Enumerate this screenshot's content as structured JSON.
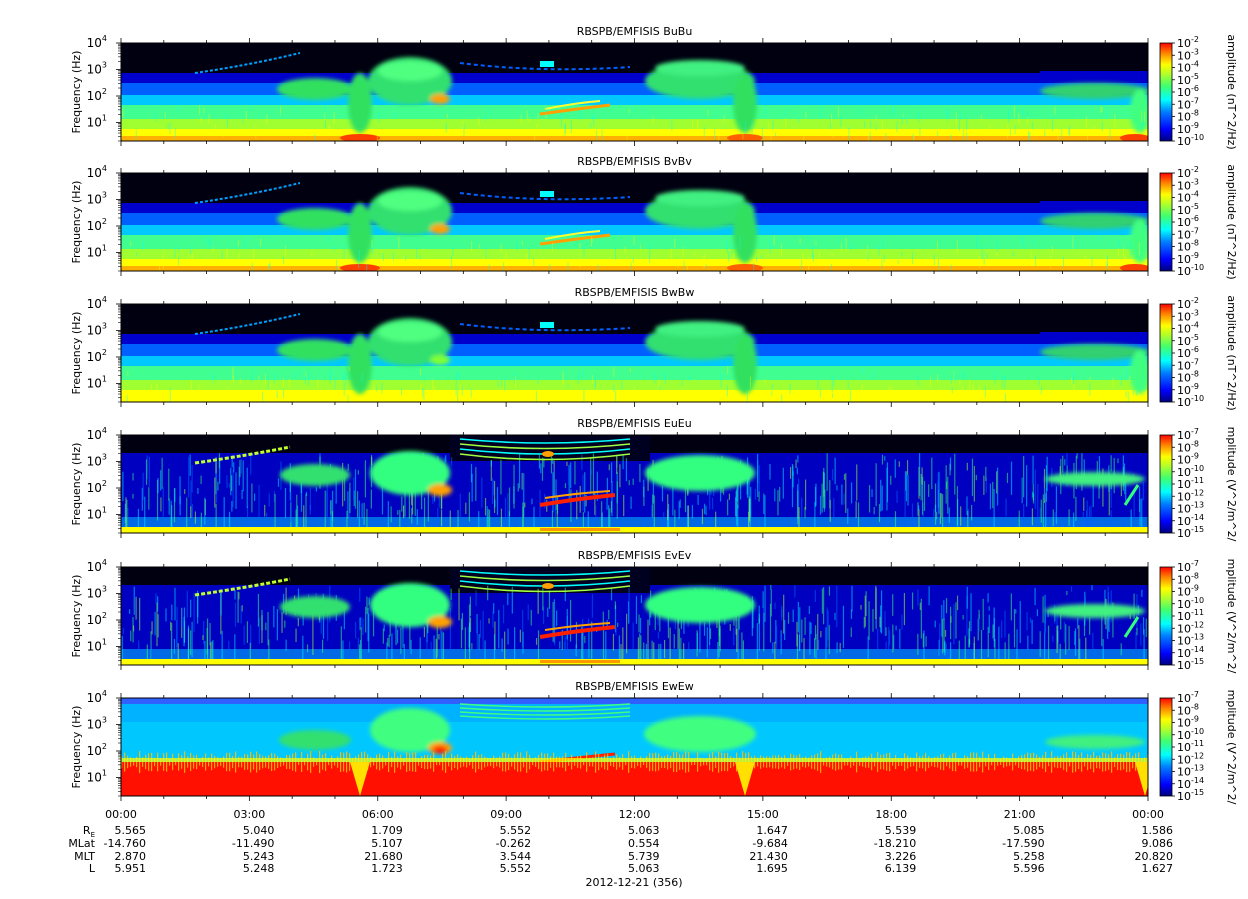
{
  "chart_data": {
    "type": "heatmap",
    "date_label": "2012-12-21 (356)",
    "x_tick_labels": [
      "00:00",
      "03:00",
      "06:00",
      "09:00",
      "12:00",
      "15:00",
      "18:00",
      "21:00",
      "00:00"
    ],
    "x_hours": [
      0,
      24
    ],
    "ephemeris": {
      "labels": [
        "R",
        "MLat",
        "MLT",
        "L"
      ],
      "re_subscript": "E",
      "rows": [
        [
          "5.565",
          "5.040",
          "1.709",
          "5.552",
          "5.063",
          "1.647",
          "5.539",
          "5.085",
          "1.586"
        ],
        [
          "-14.760",
          "-11.490",
          "5.107",
          "-0.262",
          "0.554",
          "-9.684",
          "-18.210",
          "-17.590",
          "9.086"
        ],
        [
          "2.870",
          "5.243",
          "21.680",
          "3.544",
          "5.739",
          "21.430",
          "3.226",
          "5.258",
          "20.820"
        ],
        [
          "5.951",
          "5.248",
          "1.723",
          "5.552",
          "5.063",
          "1.695",
          "6.139",
          "5.596",
          "1.627"
        ]
      ]
    },
    "panels": [
      {
        "title": "RBSPB/EMFISIS  BuBu",
        "ylabel": "Frequency (Hz)",
        "ylim": [
          2,
          10000
        ],
        "y_scale": "log",
        "colorbar_label": "amplitude (nT^2/Hz)",
        "color_exp_range": [
          -10,
          -2
        ],
        "colorbar_ticks": [
          "10",
          "10",
          "10",
          "10",
          "10",
          "10",
          "10",
          "10",
          "10"
        ],
        "colorbar_exps": [
          "-2",
          "-3",
          "-4",
          "-5",
          "-6",
          "-7",
          "-8",
          "-9",
          "-10"
        ]
      },
      {
        "title": "RBSPB/EMFISIS  BvBv",
        "ylabel": "Frequency (Hz)",
        "ylim": [
          2,
          10000
        ],
        "y_scale": "log",
        "colorbar_label": "amplitude (nT^2/Hz)",
        "color_exp_range": [
          -10,
          -2
        ],
        "colorbar_ticks": [
          "10",
          "10",
          "10",
          "10",
          "10",
          "10",
          "10",
          "10",
          "10"
        ],
        "colorbar_exps": [
          "-2",
          "-3",
          "-4",
          "-5",
          "-6",
          "-7",
          "-8",
          "-9",
          "-10"
        ]
      },
      {
        "title": "RBSPB/EMFISIS  BwBw",
        "ylabel": "Frequency (Hz)",
        "ylim": [
          2,
          10000
        ],
        "y_scale": "log",
        "colorbar_label": "amplitude (nT^2/Hz)",
        "color_exp_range": [
          -10,
          -2
        ],
        "colorbar_ticks": [
          "10",
          "10",
          "10",
          "10",
          "10",
          "10",
          "10",
          "10",
          "10"
        ],
        "colorbar_exps": [
          "-2",
          "-3",
          "-4",
          "-5",
          "-6",
          "-7",
          "-8",
          "-9",
          "-10"
        ]
      },
      {
        "title": "RBSPB/EMFISIS  EuEu",
        "ylabel": "Frequency (Hz)",
        "ylim": [
          2,
          10000
        ],
        "y_scale": "log",
        "colorbar_label": "mplitude (V^2/m^2/",
        "color_exp_range": [
          -15,
          -7
        ],
        "colorbar_ticks": [
          "10",
          "10",
          "10",
          "10",
          "10",
          "10",
          "10",
          "10",
          "10"
        ],
        "colorbar_exps": [
          "-7",
          "-8",
          "-9",
          "-10",
          "-11",
          "-12",
          "-13",
          "-14",
          "-15"
        ]
      },
      {
        "title": "RBSPB/EMFISIS  EvEv",
        "ylabel": "Frequency (Hz)",
        "ylim": [
          2,
          10000
        ],
        "y_scale": "log",
        "colorbar_label": "mplitude (V^2/m^2/",
        "color_exp_range": [
          -15,
          -7
        ],
        "colorbar_ticks": [
          "10",
          "10",
          "10",
          "10",
          "10",
          "10",
          "10",
          "10",
          "10"
        ],
        "colorbar_exps": [
          "-7",
          "-8",
          "-9",
          "-10",
          "-11",
          "-12",
          "-13",
          "-14",
          "-15"
        ]
      },
      {
        "title": "RBSPB/EMFISIS  EwEw",
        "ylabel": "Frequency (Hz)",
        "ylim": [
          2,
          10000
        ],
        "y_scale": "log",
        "colorbar_label": "mplitude (V^2/m^2/",
        "color_exp_range": [
          -15,
          -7
        ],
        "colorbar_ticks": [
          "10",
          "10",
          "10",
          "10",
          "10",
          "10",
          "10",
          "10",
          "10"
        ],
        "colorbar_exps": [
          "-7",
          "-8",
          "-9",
          "-10",
          "-11",
          "-12",
          "-13",
          "-14",
          "-15"
        ]
      }
    ],
    "y_tick_labels": [
      {
        "base": "10",
        "exp": "4",
        "value": 10000
      },
      {
        "base": "10",
        "exp": "3",
        "value": 1000
      },
      {
        "base": "10",
        "exp": "2",
        "value": 100
      },
      {
        "base": "10",
        "exp": "1",
        "value": 10
      }
    ],
    "colormap": [
      "#00007f",
      "#0000ff",
      "#0080ff",
      "#00ffff",
      "#80ff80",
      "#ffff00",
      "#ff8000",
      "#ff0000"
    ]
  }
}
